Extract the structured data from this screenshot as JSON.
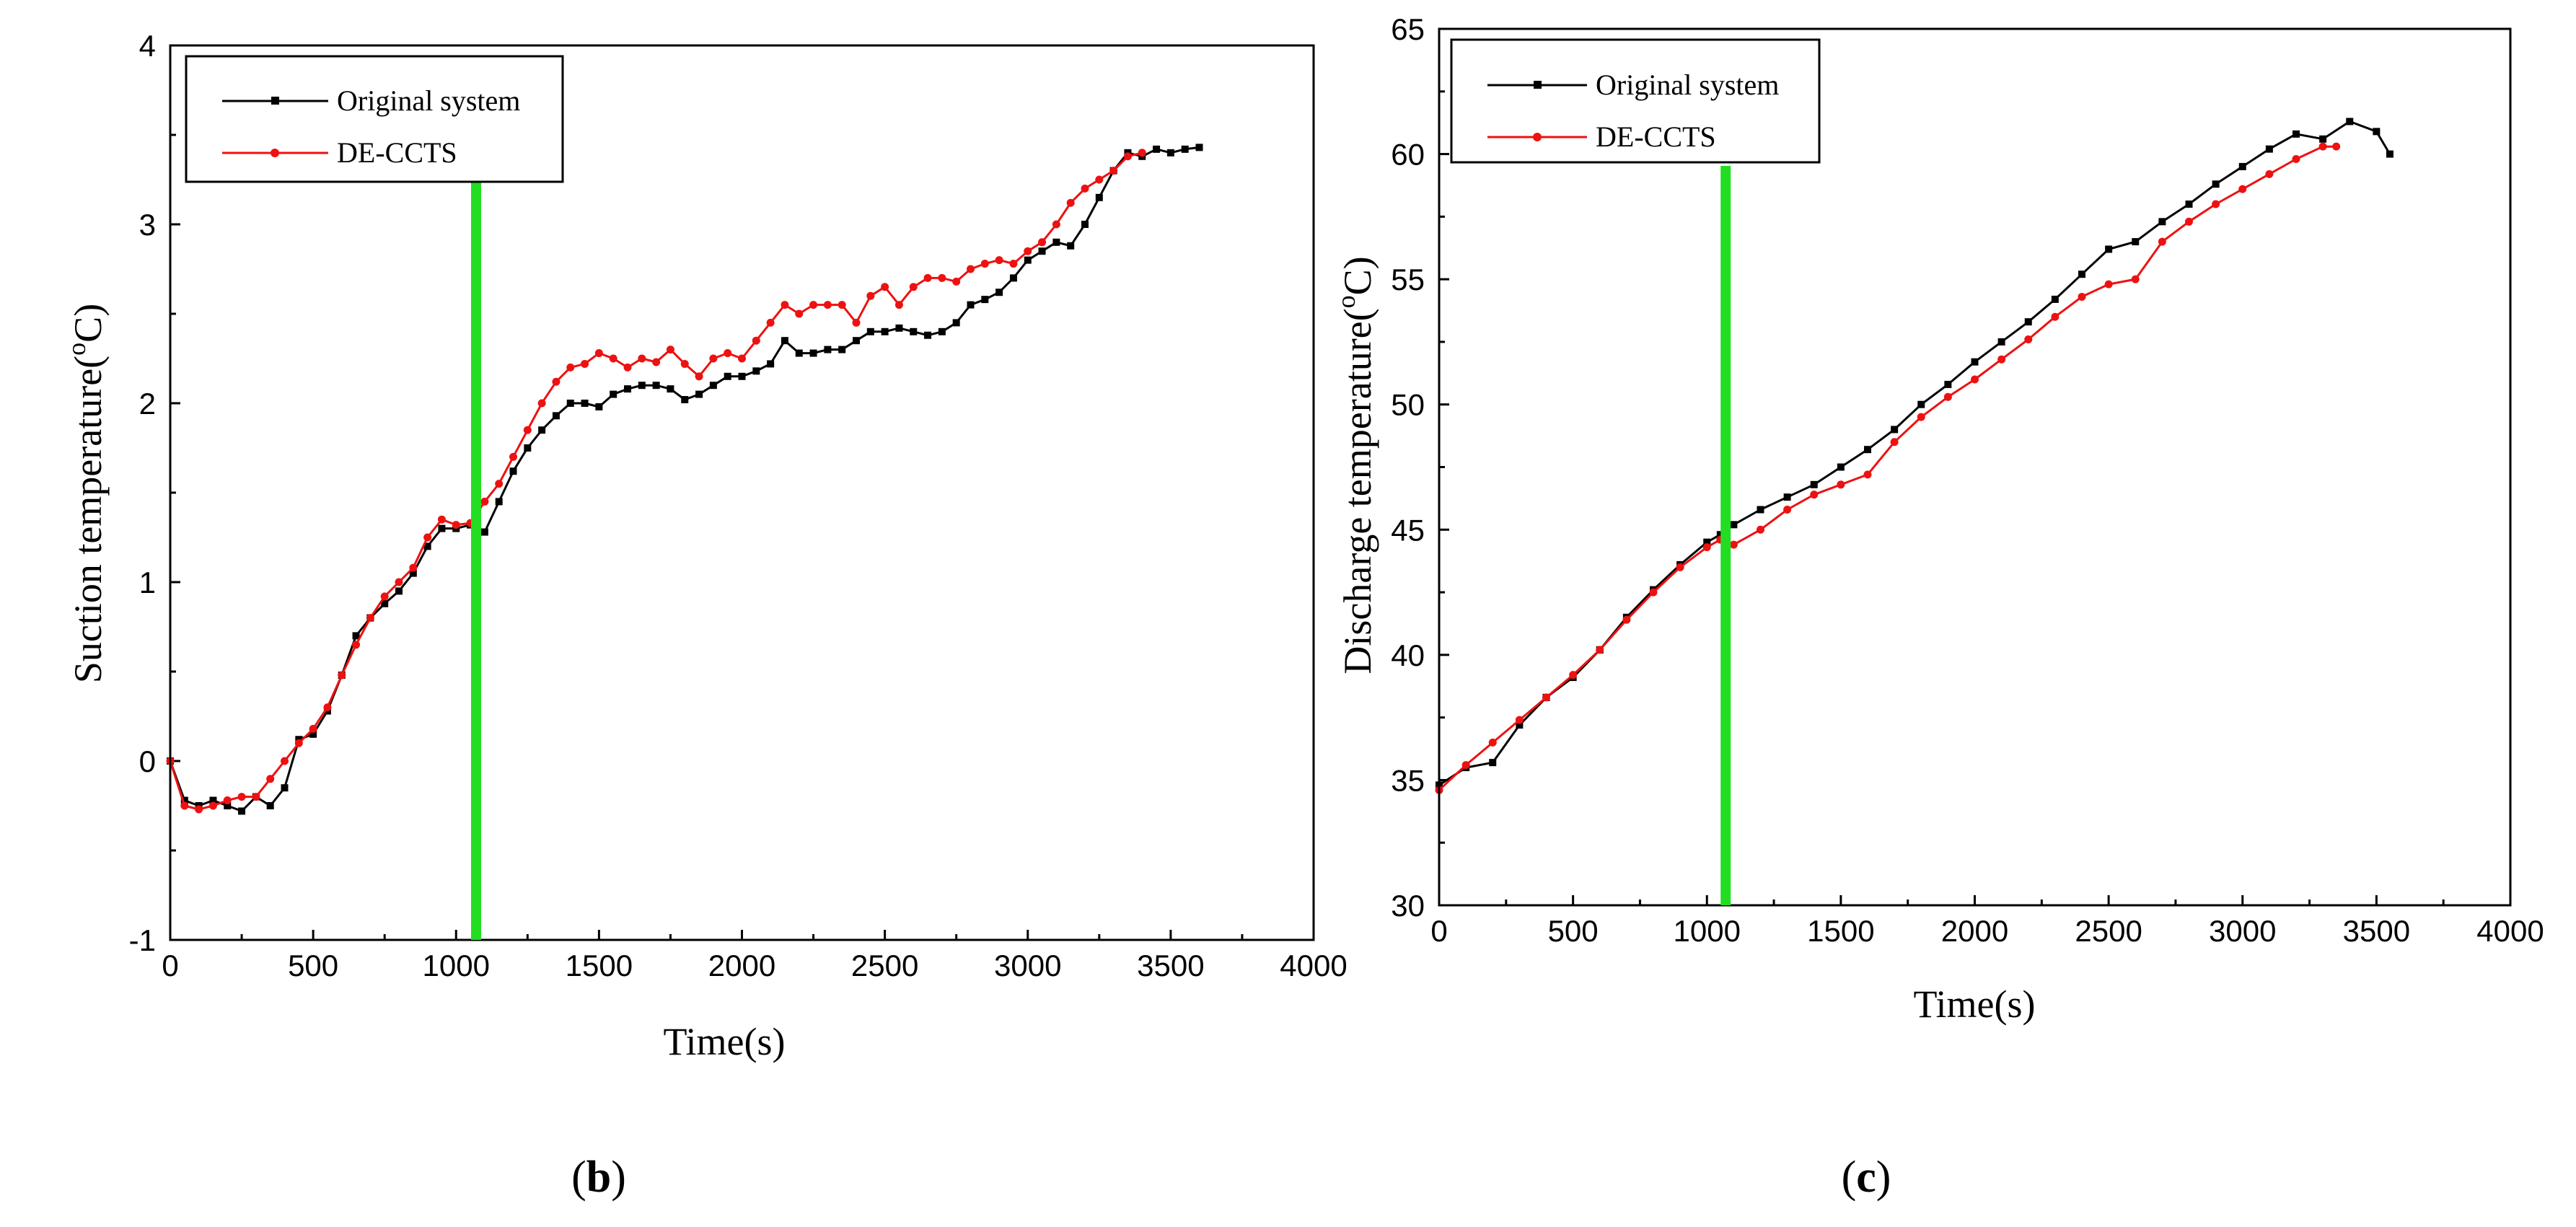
{
  "chart_data": [
    {
      "type": "line",
      "panel": "b",
      "panel_label": "b",
      "xlabel": "Time(s)",
      "ylabel_main": "Suction temperature(",
      "ylabel_sup": "o",
      "ylabel_end": "C)",
      "xlim": [
        0,
        4000
      ],
      "ylim": [
        -1,
        4
      ],
      "xticks": [
        0,
        500,
        1000,
        1500,
        2000,
        2500,
        3000,
        3500,
        4000
      ],
      "yticks": [
        -1,
        0,
        1,
        2,
        3,
        4
      ],
      "xtick_labels": [
        "0",
        "500",
        "1000",
        "1500",
        "2000",
        "2500",
        "3000",
        "3500",
        "4000"
      ],
      "ytick_labels": [
        "-1",
        "0",
        "1",
        "2",
        "3",
        "4"
      ],
      "vline_x": 1070,
      "vline_color": "#22dd22",
      "legend_position": "top-left",
      "series": [
        {
          "name": "Original system",
          "color": "#000000",
          "marker": "square",
          "x": [
            0,
            50,
            100,
            150,
            200,
            250,
            300,
            350,
            400,
            450,
            500,
            550,
            600,
            650,
            700,
            750,
            800,
            850,
            900,
            950,
            1000,
            1050,
            1100,
            1150,
            1200,
            1250,
            1300,
            1350,
            1400,
            1450,
            1500,
            1550,
            1600,
            1650,
            1700,
            1750,
            1800,
            1850,
            1900,
            1950,
            2000,
            2050,
            2100,
            2150,
            2200,
            2250,
            2300,
            2350,
            2400,
            2450,
            2500,
            2550,
            2600,
            2650,
            2700,
            2750,
            2800,
            2850,
            2900,
            2950,
            3000,
            3050,
            3100,
            3150,
            3200,
            3250,
            3300,
            3350,
            3400,
            3450,
            3500,
            3550,
            3600
          ],
          "values": [
            0,
            -0.22,
            -0.25,
            -0.22,
            -0.25,
            -0.28,
            -0.2,
            -0.25,
            -0.15,
            0.12,
            0.15,
            0.28,
            0.48,
            0.7,
            0.8,
            0.88,
            0.95,
            1.05,
            1.2,
            1.3,
            1.3,
            1.32,
            1.28,
            1.45,
            1.62,
            1.75,
            1.85,
            1.93,
            2.0,
            2.0,
            1.98,
            2.05,
            2.08,
            2.1,
            2.1,
            2.08,
            2.02,
            2.05,
            2.1,
            2.15,
            2.15,
            2.18,
            2.22,
            2.35,
            2.28,
            2.28,
            2.3,
            2.3,
            2.35,
            2.4,
            2.4,
            2.42,
            2.4,
            2.38,
            2.4,
            2.45,
            2.55,
            2.58,
            2.62,
            2.7,
            2.8,
            2.85,
            2.9,
            2.88,
            3.0,
            3.15,
            3.3,
            3.4,
            3.38,
            3.42,
            3.4,
            3.42,
            3.43
          ]
        },
        {
          "name": "DE-CCTS",
          "color": "#ee1111",
          "marker": "circle",
          "x": [
            0,
            50,
            100,
            150,
            200,
            250,
            300,
            350,
            400,
            450,
            500,
            550,
            600,
            650,
            700,
            750,
            800,
            850,
            900,
            950,
            1000,
            1050,
            1100,
            1150,
            1200,
            1250,
            1300,
            1350,
            1400,
            1450,
            1500,
            1550,
            1600,
            1650,
            1700,
            1750,
            1800,
            1850,
            1900,
            1950,
            2000,
            2050,
            2100,
            2150,
            2200,
            2250,
            2300,
            2350,
            2400,
            2450,
            2500,
            2550,
            2600,
            2650,
            2700,
            2750,
            2800,
            2850,
            2900,
            2950,
            3000,
            3050,
            3100,
            3150,
            3200,
            3250,
            3300,
            3350,
            3400
          ],
          "values": [
            0,
            -0.25,
            -0.27,
            -0.25,
            -0.22,
            -0.2,
            -0.2,
            -0.1,
            0.0,
            0.1,
            0.18,
            0.3,
            0.48,
            0.65,
            0.8,
            0.92,
            1.0,
            1.08,
            1.25,
            1.35,
            1.32,
            1.33,
            1.45,
            1.55,
            1.7,
            1.85,
            2.0,
            2.12,
            2.2,
            2.22,
            2.28,
            2.25,
            2.2,
            2.25,
            2.23,
            2.3,
            2.22,
            2.15,
            2.25,
            2.28,
            2.25,
            2.35,
            2.45,
            2.55,
            2.5,
            2.55,
            2.55,
            2.55,
            2.45,
            2.6,
            2.65,
            2.55,
            2.65,
            2.7,
            2.7,
            2.68,
            2.75,
            2.78,
            2.8,
            2.78,
            2.85,
            2.9,
            3.0,
            3.12,
            3.2,
            3.25,
            3.3,
            3.38,
            3.4
          ]
        }
      ]
    },
    {
      "type": "line",
      "panel": "c",
      "panel_label": "c",
      "xlabel": "Time(s)",
      "ylabel_main": "Discharge temperature(",
      "ylabel_sup": "o",
      "ylabel_end": "C)",
      "xlim": [
        0,
        4000
      ],
      "ylim": [
        30,
        65
      ],
      "xticks": [
        0,
        500,
        1000,
        1500,
        2000,
        2500,
        3000,
        3500,
        4000
      ],
      "yticks": [
        30,
        35,
        40,
        45,
        50,
        55,
        60,
        65
      ],
      "xtick_labels": [
        "0",
        "500",
        "1000",
        "1500",
        "2000",
        "2500",
        "3000",
        "3500",
        "4000"
      ],
      "ytick_labels": [
        "30",
        "35",
        "40",
        "45",
        "50",
        "55",
        "60",
        "65"
      ],
      "vline_x": 1070,
      "vline_color": "#22dd22",
      "legend_position": "top-left",
      "series": [
        {
          "name": "Original system",
          "color": "#000000",
          "marker": "square",
          "x": [
            0,
            100,
            200,
            300,
            400,
            500,
            600,
            700,
            800,
            900,
            1000,
            1050,
            1100,
            1200,
            1300,
            1400,
            1500,
            1600,
            1700,
            1800,
            1900,
            2000,
            2100,
            2200,
            2300,
            2400,
            2500,
            2600,
            2700,
            2800,
            2900,
            3000,
            3100,
            3200,
            3300,
            3400,
            3500,
            3550
          ],
          "values": [
            34.8,
            35.5,
            35.7,
            37.2,
            38.3,
            39.1,
            40.2,
            41.5,
            42.6,
            43.6,
            44.5,
            44.8,
            45.2,
            45.8,
            46.3,
            46.8,
            47.5,
            48.2,
            49.0,
            50.0,
            50.8,
            51.7,
            52.5,
            53.3,
            54.2,
            55.2,
            56.2,
            56.5,
            57.3,
            58.0,
            58.8,
            59.5,
            60.2,
            60.8,
            60.6,
            61.3,
            60.9,
            60.0
          ]
        },
        {
          "name": "DE-CCTS",
          "color": "#ee1111",
          "marker": "circle",
          "x": [
            0,
            100,
            200,
            300,
            400,
            500,
            600,
            700,
            800,
            900,
            1000,
            1050,
            1100,
            1200,
            1300,
            1400,
            1500,
            1600,
            1700,
            1800,
            1900,
            2000,
            2100,
            2200,
            2300,
            2400,
            2500,
            2600,
            2700,
            2800,
            2900,
            3000,
            3100,
            3200,
            3300,
            3350
          ],
          "values": [
            34.6,
            35.6,
            36.5,
            37.4,
            38.3,
            39.2,
            40.2,
            41.4,
            42.5,
            43.5,
            44.3,
            44.6,
            44.4,
            45.0,
            45.8,
            46.4,
            46.8,
            47.2,
            48.5,
            49.5,
            50.3,
            51.0,
            51.8,
            52.6,
            53.5,
            54.3,
            54.8,
            55.0,
            56.5,
            57.3,
            58.0,
            58.6,
            59.2,
            59.8,
            60.3,
            60.3
          ]
        }
      ]
    }
  ]
}
